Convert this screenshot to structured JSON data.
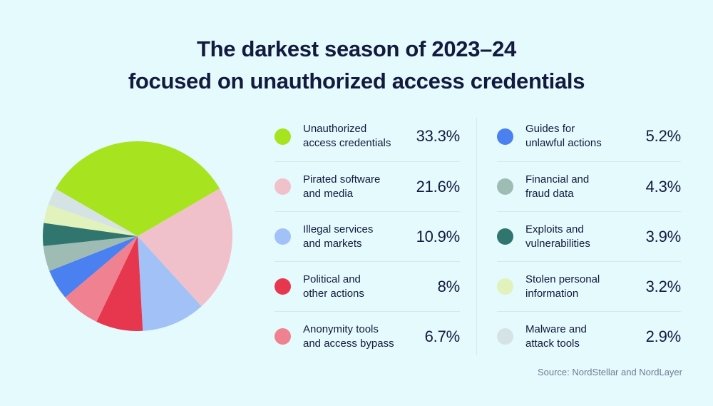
{
  "title": {
    "line1": "The darkest season of 2023–24",
    "line2": "focused on unauthorized access credentials"
  },
  "source": "Source: NordStellar and NordLayer",
  "colors": {
    "background": "#E5FAFC",
    "text": "#121A3E",
    "muted_text": "#6F7A96",
    "divider": "#D6E8EA"
  },
  "chart_data": {
    "type": "pie",
    "title": "The darkest season of 2023–24 focused on unauthorized access credentials",
    "legend_position": "right",
    "start_angle_deg": 150,
    "direction": "clockwise",
    "categories": [
      "Unauthorized access credentials",
      "Pirated software and media",
      "Illegal services and markets",
      "Political and other actions",
      "Anonymity tools and access bypass",
      "Guides for unlawful actions",
      "Financial and fraud data",
      "Exploits and vulnerabilities",
      "Stolen personal information",
      "Malware and attack tools"
    ],
    "values": [
      33.3,
      21.6,
      10.9,
      8,
      6.7,
      5.2,
      4.3,
      3.9,
      3.2,
      2.9
    ],
    "slices": [
      {
        "label": "Unauthorized access credentials",
        "label_lines": "Unauthorized\naccess credentials",
        "value": 33.3,
        "display": "33.3%",
        "color": "#A8E320"
      },
      {
        "label": "Pirated software and media",
        "label_lines": "Pirated software\nand media",
        "value": 21.6,
        "display": "21.6%",
        "color": "#F1C1CB"
      },
      {
        "label": "Illegal services and markets",
        "label_lines": "Illegal services\nand markets",
        "value": 10.9,
        "display": "10.9%",
        "color": "#A2C1F6"
      },
      {
        "label": "Political and other actions",
        "label_lines": "Political and\nother actions",
        "value": 8,
        "display": "8%",
        "color": "#E7374F"
      },
      {
        "label": "Anonymity tools and access bypass",
        "label_lines": "Anonymity tools\nand access bypass",
        "value": 6.7,
        "display": "6.7%",
        "color": "#EF8190"
      },
      {
        "label": "Guides for unlawful actions",
        "label_lines": "Guides for\nunlawful actions",
        "value": 5.2,
        "display": "5.2%",
        "color": "#4A80EF"
      },
      {
        "label": "Financial and fraud data",
        "label_lines": "Financial and\nfraud data",
        "value": 4.3,
        "display": "4.3%",
        "color": "#9FBCB4"
      },
      {
        "label": "Exploits and vulnerabilities",
        "label_lines": "Exploits and\nvulnerabilities",
        "value": 3.9,
        "display": "3.9%",
        "color": "#31766E"
      },
      {
        "label": "Stolen personal information",
        "label_lines": "Stolen personal\ninformation",
        "value": 3.2,
        "display": "3.2%",
        "color": "#E2F2BC"
      },
      {
        "label": "Malware and attack tools",
        "label_lines": "Malware and\nattack tools",
        "value": 2.9,
        "display": "2.9%",
        "color": "#D5E3E5"
      }
    ]
  },
  "legend": {
    "left_column_count": 5
  }
}
